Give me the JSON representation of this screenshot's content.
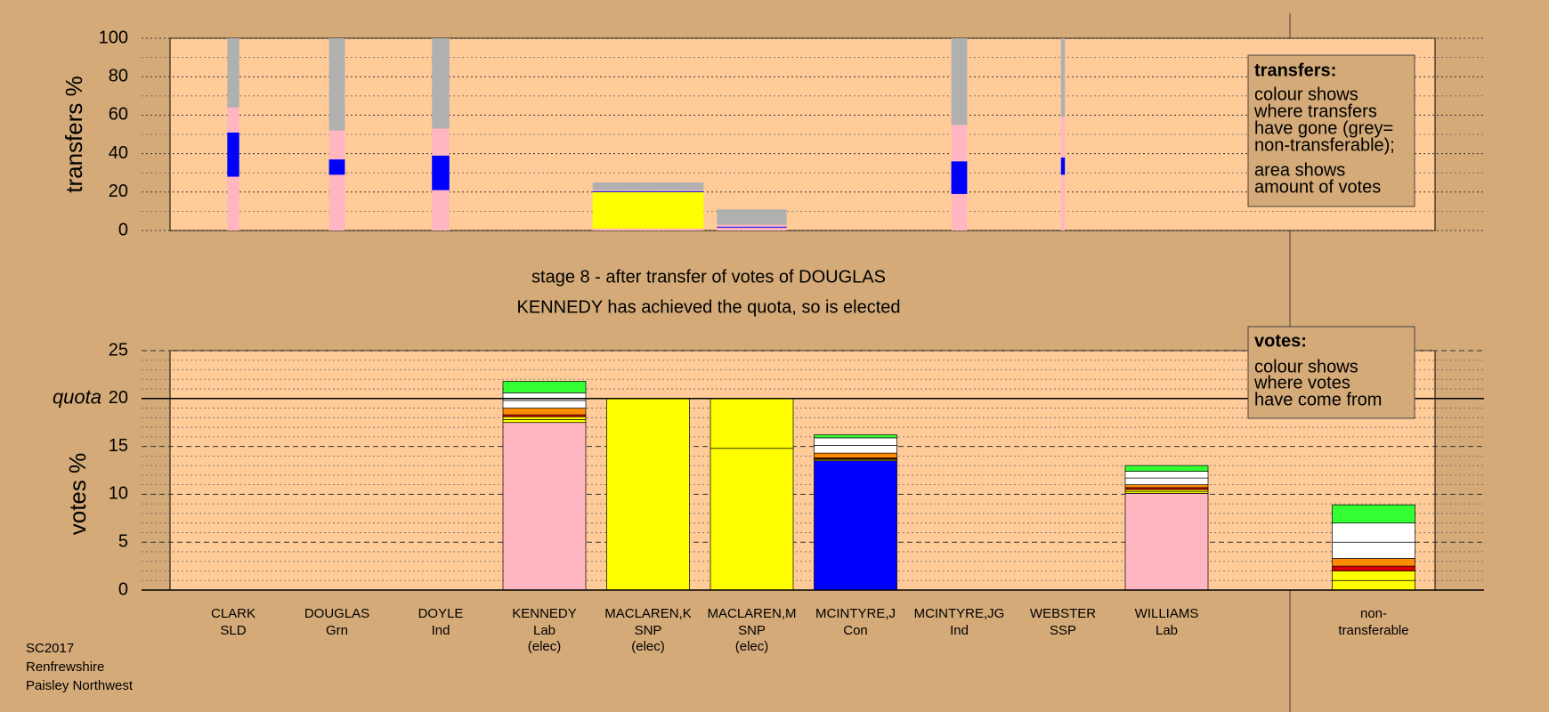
{
  "chart_data": [
    {
      "type": "bar",
      "stacked": true,
      "ylabel": "transfers %",
      "ylim": [
        0,
        100
      ],
      "yticks": [
        0,
        20,
        40,
        60,
        80,
        100
      ],
      "grid": true,
      "grid_style": "dotted",
      "minor_divisions": 2,
      "amounts": [
        0.75,
        1,
        1.1,
        null,
        7,
        4.4,
        null,
        1,
        0.25,
        null
      ],
      "series": [
        {
          "color": "#ffb6c1",
          "values": [
            28,
            29,
            21,
            null,
            1,
            1.5,
            null,
            19,
            29,
            null
          ]
        },
        {
          "color": "#ffff00",
          "values": [
            0,
            0,
            0,
            null,
            19,
            0,
            null,
            0,
            0,
            null
          ]
        },
        {
          "color": "#0000ff",
          "values": [
            23,
            8,
            18,
            null,
            0.5,
            0.5,
            null,
            17,
            9,
            null
          ]
        },
        {
          "color": "#ffb6c1",
          "values": [
            13,
            15,
            14,
            null,
            0.5,
            1,
            null,
            19,
            21,
            null
          ]
        },
        {
          "color": "#b0b0b0",
          "values": [
            36,
            48,
            47,
            null,
            4,
            8,
            null,
            45,
            41,
            null
          ]
        }
      ],
      "note": {
        "title": "transfers:",
        "lines": [
          [
            "colour shows",
            "where transfers",
            "have gone (grey=",
            "non-transferable);"
          ],
          [
            "area shows",
            "amount of votes"
          ]
        ]
      }
    },
    {
      "type": "bar",
      "stacked": true,
      "ylabel": "votes %",
      "ylim": [
        0,
        25
      ],
      "yticks": [
        0,
        5,
        10,
        15,
        20,
        25
      ],
      "grid": true,
      "grid_style": "dashed",
      "minor_divisions": 5,
      "reference_line": {
        "label": "quota",
        "value": 20
      },
      "categories": [
        "CLARK",
        "DOUGLAS",
        "DOYLE",
        "KENNEDY",
        "MACLAREN,K",
        "MACLAREN,M",
        "MCINTYRE,J",
        "MCINTYRE,JG",
        "WEBSTER",
        "WILLIAMS",
        "non-"
      ],
      "parties": [
        "SLD",
        "Grn",
        "Ind",
        "Lab",
        "SNP",
        "SNP",
        "Con",
        "Ind",
        "SSP",
        "Lab",
        "transferable"
      ],
      "notes": [
        null,
        null,
        null,
        "(elec)",
        "(elec)",
        "(elec)",
        null,
        null,
        null,
        null,
        null
      ],
      "series": [
        {
          "colors": [
            "#ff8c00",
            "#33ff33",
            "#ffffff",
            "#ffb6c1",
            "#ffff00",
            "#ffff00",
            "#0000ff",
            "#ffffff",
            "#dd0000",
            "#ffb6c1",
            "#b0b0b0"
          ],
          "values": [
            0,
            0,
            0,
            17.5,
            20,
            14.8,
            13.5,
            0,
            0,
            10.1,
            0
          ]
        },
        {
          "color": "#ffff00",
          "values": [
            0,
            0,
            0,
            0.3,
            0,
            5.2,
            0.1,
            0,
            0,
            0.2,
            1.0
          ]
        },
        {
          "color": "#ffff00",
          "values": [
            0,
            0,
            0,
            0.3,
            0,
            0,
            0.1,
            0,
            0,
            0.2,
            1.0
          ]
        },
        {
          "color": "#dd0000",
          "values": [
            0,
            0,
            0,
            0.2,
            0,
            0,
            0.1,
            0,
            0,
            0.2,
            0.5
          ]
        },
        {
          "color": "#ff8c00",
          "values": [
            0,
            0,
            0,
            0.7,
            0,
            0,
            0.5,
            0,
            0,
            0.3,
            0.8
          ]
        },
        {
          "color": "#ffffff",
          "values": [
            0,
            0,
            0,
            0.8,
            0,
            0,
            0.8,
            0,
            0,
            0.7,
            1.7
          ]
        },
        {
          "color": "#ffffff",
          "values": [
            0,
            0,
            0,
            0.8,
            0,
            0,
            0.8,
            0,
            0,
            0.7,
            2.0
          ]
        },
        {
          "color": "#33ff33",
          "values": [
            0,
            0,
            0,
            1.2,
            0,
            0,
            0.3,
            0,
            0,
            0.6,
            1.9
          ]
        }
      ],
      "note": {
        "title": "votes:",
        "lines": [
          [
            "colour shows",
            "where votes",
            "have come from"
          ]
        ]
      }
    }
  ],
  "status": [
    "stage 8 - after transfer of votes of DOUGLAS",
    "KENNEDY has achieved the quota, so is elected"
  ],
  "footer": [
    "SC2017",
    "Renfrewshire",
    "Paisley Northwest"
  ]
}
